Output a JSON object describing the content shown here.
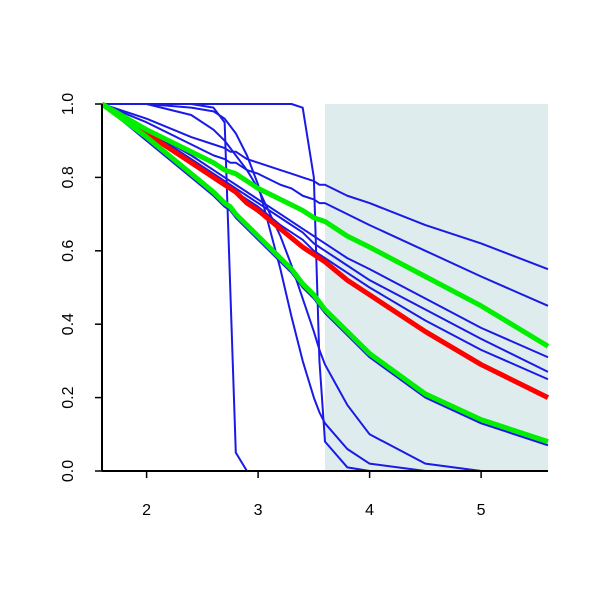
{
  "chart_data": {
    "type": "line",
    "x": [
      1.6,
      2.0,
      2.4,
      2.6,
      2.7,
      2.75,
      2.8,
      2.9,
      3.0,
      3.2,
      3.3,
      3.4,
      3.5,
      3.55,
      3.6,
      3.8,
      4.0,
      4.5,
      5.0,
      5.6
    ],
    "xlim": [
      1.6,
      5.6
    ],
    "xticks": [
      2,
      3,
      4,
      5
    ],
    "ylim": [
      0,
      1
    ],
    "yticks": [
      {
        "value": 0,
        "label": "0.0"
      },
      {
        "value": 0.2,
        "label": "0.2"
      },
      {
        "value": 0.4,
        "label": "0.4"
      },
      {
        "value": 0.6,
        "label": "0.6"
      },
      {
        "value": 0.8,
        "label": "0.8"
      },
      {
        "value": 1,
        "label": "1.0"
      }
    ],
    "shaded_region": {
      "xrange": [
        3.6,
        5.6
      ],
      "color": "#deeced"
    },
    "series": [
      {
        "color": "#1a1ae6",
        "width": 2,
        "values": [
          1,
          0.96,
          0.91,
          0.89,
          0.88,
          0.87,
          0.87,
          0.85,
          0.84,
          0.82,
          0.81,
          0.8,
          0.79,
          0.78,
          0.78,
          0.75,
          0.73,
          0.67,
          0.62,
          0.55
        ]
      },
      {
        "color": "#1a1ae6",
        "width": 2,
        "values": [
          1,
          0.95,
          0.89,
          0.86,
          0.85,
          0.84,
          0.84,
          0.82,
          0.81,
          0.78,
          0.77,
          0.75,
          0.74,
          0.73,
          0.73,
          0.7,
          0.67,
          0.6,
          0.53,
          0.45
        ]
      },
      {
        "color": "#1a1ae6",
        "width": 2,
        "values": [
          1,
          0.93,
          0.86,
          0.82,
          0.8,
          0.79,
          0.78,
          0.76,
          0.74,
          0.7,
          0.68,
          0.66,
          0.64,
          0.63,
          0.62,
          0.58,
          0.55,
          0.47,
          0.39,
          0.31
        ]
      },
      {
        "color": "#1a1ae6",
        "width": 2,
        "values": [
          1,
          0.93,
          0.85,
          0.81,
          0.79,
          0.78,
          0.77,
          0.75,
          0.73,
          0.69,
          0.67,
          0.65,
          0.62,
          0.61,
          0.6,
          0.56,
          0.52,
          0.44,
          0.36,
          0.27
        ]
      },
      {
        "color": "#1a1ae6",
        "width": 2,
        "values": [
          1,
          0.92,
          0.84,
          0.8,
          0.78,
          0.77,
          0.76,
          0.74,
          0.72,
          0.67,
          0.65,
          0.63,
          0.6,
          0.59,
          0.58,
          0.54,
          0.5,
          0.41,
          0.33,
          0.25
        ]
      },
      {
        "color": "#1a1ae6",
        "width": 2,
        "values": [
          1,
          1,
          1,
          0.99,
          0.95,
          0.5,
          0.05,
          0,
          0,
          0,
          0,
          0,
          0,
          0,
          0,
          0,
          0,
          0,
          0,
          0
        ]
      },
      {
        "color": "#1a1ae6",
        "width": 2,
        "values": [
          1,
          1,
          1,
          1,
          1,
          1,
          1,
          1,
          1,
          1,
          1,
          0.99,
          0.8,
          0.3,
          0.08,
          0.01,
          0,
          0,
          0,
          0
        ]
      },
      {
        "color": "#1a1ae6",
        "width": 2,
        "values": [
          1,
          1,
          0.99,
          0.98,
          0.96,
          0.94,
          0.92,
          0.86,
          0.78,
          0.55,
          0.42,
          0.3,
          0.2,
          0.16,
          0.13,
          0.06,
          0.02,
          0,
          0,
          0
        ]
      },
      {
        "color": "#1a1ae6",
        "width": 2,
        "values": [
          1,
          1,
          0.97,
          0.93,
          0.9,
          0.88,
          0.86,
          0.82,
          0.77,
          0.64,
          0.56,
          0.47,
          0.38,
          0.33,
          0.29,
          0.18,
          0.1,
          0.02,
          0,
          0
        ]
      },
      {
        "color": "#1a1ae6",
        "width": 2,
        "values": [
          1,
          0.9,
          0.8,
          0.75,
          0.72,
          0.71,
          0.69,
          0.66,
          0.63,
          0.57,
          0.54,
          0.5,
          0.47,
          0.45,
          0.43,
          0.37,
          0.31,
          0.2,
          0.13,
          0.07
        ]
      },
      {
        "color": "#ff0000",
        "width": 5,
        "values": [
          1,
          0.92,
          0.84,
          0.8,
          0.78,
          0.77,
          0.76,
          0.73,
          0.71,
          0.66,
          0.635,
          0.61,
          0.59,
          0.58,
          0.57,
          0.52,
          0.48,
          0.38,
          0.29,
          0.2
        ]
      },
      {
        "color": "#00ee00",
        "width": 5,
        "values": [
          1,
          0.93,
          0.87,
          0.84,
          0.82,
          0.815,
          0.81,
          0.79,
          0.77,
          0.74,
          0.725,
          0.71,
          0.69,
          0.685,
          0.68,
          0.64,
          0.61,
          0.53,
          0.45,
          0.34
        ]
      },
      {
        "color": "#00ee00",
        "width": 5,
        "values": [
          1,
          0.91,
          0.81,
          0.76,
          0.73,
          0.72,
          0.7,
          0.67,
          0.64,
          0.58,
          0.55,
          0.51,
          0.48,
          0.46,
          0.44,
          0.38,
          0.32,
          0.21,
          0.14,
          0.08
        ]
      }
    ]
  }
}
